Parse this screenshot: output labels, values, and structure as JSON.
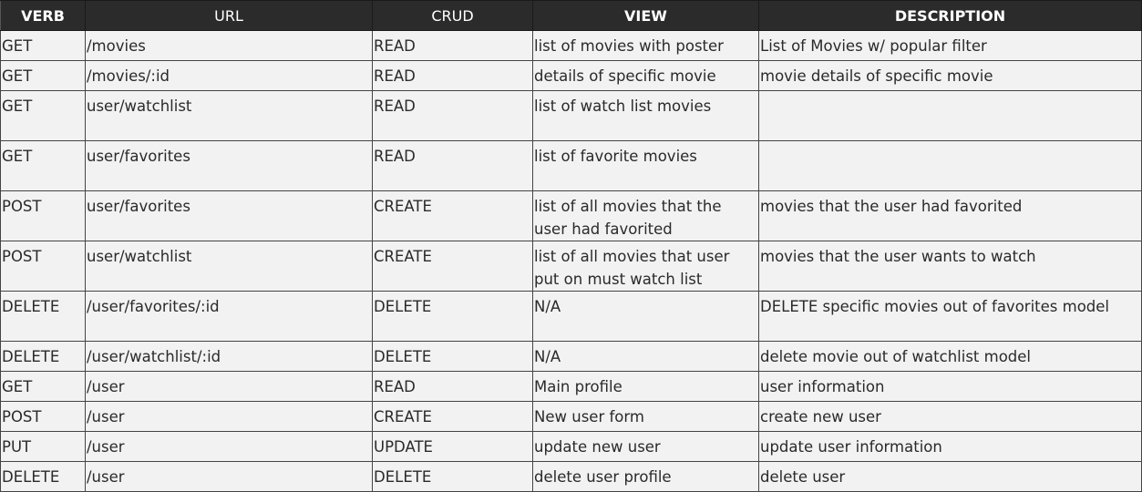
{
  "headers": [
    "VERB",
    "URL",
    "CRUD",
    "VIEW",
    "DESCRIPTION"
  ],
  "rows": [
    {
      "verb": "GET",
      "url": "/movies",
      "crud": "READ",
      "view": "list of movies with poster",
      "description": "List of Movies w/ popular filter"
    },
    {
      "verb": "GET",
      "url": "/movies/:id",
      "crud": "READ",
      "view": "details of specific movie",
      "description": "movie details of specific movie"
    },
    {
      "verb": "GET",
      "url": "user/watchlist",
      "crud": "READ",
      "view": "list of watch list movies",
      "description": ""
    },
    {
      "verb": "GET",
      "url": "user/favorites",
      "crud": "READ",
      "view": "list of favorite movies",
      "description": ""
    },
    {
      "verb": "POST",
      "url": "user/favorites",
      "crud": "CREATE",
      "view": "list of all movies that the user had favorited",
      "description": "movies that the user had favorited"
    },
    {
      "verb": "POST",
      "url": "user/watchlist",
      "crud": "CREATE",
      "view": "list of all movies that user put on must watch list",
      "description": "movies that the user wants to watch"
    },
    {
      "verb": "DELETE",
      "url": "/user/favorites/:id",
      "crud": "DELETE",
      "view": "N/A",
      "description": "DELETE specific movies out of favorites model"
    },
    {
      "verb": "DELETE",
      "url": "/user/watchlist/:id",
      "crud": "DELETE",
      "view": "N/A",
      "description": "delete movie out of watchlist model"
    },
    {
      "verb": "GET",
      "url": "/user",
      "crud": "READ",
      "view": "Main profile",
      "description": "user information"
    },
    {
      "verb": "POST",
      "url": "/user",
      "crud": "CREATE",
      "view": "New user form",
      "description": "create new user"
    },
    {
      "verb": "PUT",
      "url": "/user",
      "crud": "UPDATE",
      "view": "update new user",
      "description": "update user information"
    },
    {
      "verb": "DELETE",
      "url": "/user",
      "crud": "DELETE",
      "view": "delete user profile",
      "description": "delete user"
    }
  ]
}
